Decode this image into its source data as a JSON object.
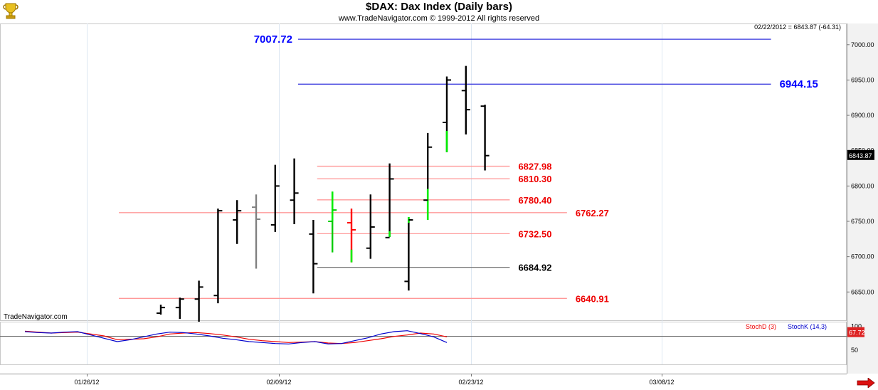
{
  "header": {
    "title": "$DAX:  Dax Index  (Daily bars)",
    "subtitle": "www.TradeNavigator.com © 1999-2012 All rights reserved",
    "readout": "02/22/2012 = 6843.87 (-64.31)",
    "watermark": "TradeNavigator.com",
    "logo_icon": "trophy-icon",
    "scroll_icon": "red-arrow-right-icon"
  },
  "chart_data": {
    "type": "ohlc",
    "title": "$DAX:  Dax Index  (Daily bars)",
    "ylim": [
      6610,
      7030
    ],
    "yticks": [
      6650,
      6700,
      6750,
      6800,
      6850,
      6900,
      6950,
      7000
    ],
    "ytick_labels": [
      "6650.00",
      "6700.00",
      "6750.00",
      "6800.00",
      "6850.00",
      "6900.00",
      "6950.00",
      "7000.00"
    ],
    "last_price_label": "6843.87",
    "xtick_labels": [
      "01/26/12",
      "02/09/12",
      "02/23/12",
      "03/08/12"
    ],
    "bars": [
      {
        "o": 6620,
        "h": 6632,
        "l": 6618,
        "c": 6628,
        "color": "#000000"
      },
      {
        "o": 6628,
        "h": 6642,
        "l": 6612,
        "c": 6640,
        "color": "#000000"
      },
      {
        "o": 6640,
        "h": 6666,
        "l": 6608,
        "c": 6657,
        "color": "#000000"
      },
      {
        "o": 6645,
        "h": 6768,
        "l": 6634,
        "c": 6765,
        "color": "#000000"
      },
      {
        "o": 6752,
        "h": 6780,
        "l": 6718,
        "c": 6765,
        "color": "#000000"
      },
      {
        "o": 6770,
        "h": 6788,
        "l": 6683,
        "c": 6753,
        "color": "#808080"
      },
      {
        "o": 6745,
        "h": 6830,
        "l": 6735,
        "c": 6800,
        "color": "#000000"
      },
      {
        "o": 6780,
        "h": 6839,
        "l": 6746,
        "c": 6790,
        "color": "#000000"
      },
      {
        "o": 6732,
        "h": 6752,
        "l": 6648,
        "c": 6690,
        "color": "#000000"
      },
      {
        "o": 6750,
        "h": 6792,
        "l": 6706,
        "c": 6766,
        "color": "#00cc00",
        "mixed": [
          {
            "from": 6750,
            "to": 6792,
            "color": "#00ee00"
          }
        ]
      },
      {
        "o": 6748,
        "h": 6768,
        "l": 6692,
        "c": 6738,
        "color": "#ff0000",
        "mixed": [
          {
            "from": 6692,
            "to": 6710,
            "color": "#00ee00"
          }
        ]
      },
      {
        "o": 6712,
        "h": 6788,
        "l": 6697,
        "c": 6742,
        "color": "#000000"
      },
      {
        "o": 6727,
        "h": 6832,
        "l": 6728,
        "c": 6810,
        "color": "#000000",
        "mixed": [
          {
            "from": 6728,
            "to": 6736,
            "color": "#00ee00"
          }
        ]
      },
      {
        "o": 6665,
        "h": 6756,
        "l": 6652,
        "c": 6752,
        "color": "#000000",
        "mixed": [
          {
            "from": 6748,
            "to": 6756,
            "color": "#00ee00"
          }
        ]
      },
      {
        "o": 6780,
        "h": 6875,
        "l": 6752,
        "c": 6855,
        "color": "#000000",
        "mixed": [
          {
            "from": 6752,
            "to": 6796,
            "color": "#00ee00"
          }
        ]
      },
      {
        "o": 6890,
        "h": 6955,
        "l": 6848,
        "c": 6950,
        "color": "#000000",
        "mixed": [
          {
            "from": 6848,
            "to": 6878,
            "color": "#00ee00"
          }
        ]
      },
      {
        "o": 6935,
        "h": 6970,
        "l": 6873,
        "c": 6908,
        "color": "#000000"
      },
      {
        "o": 6913,
        "h": 6915,
        "l": 6822,
        "c": 6843,
        "color": "#000000"
      }
    ],
    "levels": [
      {
        "value": 7007.72,
        "label": "7007.72",
        "color": "#3333dd",
        "label_color": "#0000ff",
        "x_start_bar": 7.2,
        "x_end_bar": 32,
        "label_side": "left"
      },
      {
        "value": 6944.15,
        "label": "6944.15",
        "color": "#3333dd",
        "label_color": "#0000ff",
        "x_start_bar": 7.2,
        "x_end_bar": 32,
        "label_side": "right"
      },
      {
        "value": 6827.98,
        "label": "6827.98",
        "color": "#ff9999",
        "label_color": "#ee0000",
        "x_start_bar": 8.2,
        "x_end_bar": 18.3,
        "label_side": "right"
      },
      {
        "value": 6810.3,
        "label": "6810.30",
        "color": "#ff9999",
        "label_color": "#ee0000",
        "x_start_bar": 8.2,
        "x_end_bar": 18.3,
        "label_side": "right"
      },
      {
        "value": 6780.4,
        "label": "6780.40",
        "color": "#ff9999",
        "label_color": "#ee0000",
        "x_start_bar": 8.2,
        "x_end_bar": 18.3,
        "label_side": "right"
      },
      {
        "value": 6762.27,
        "label": "6762.27",
        "color": "#ff9999",
        "label_color": "#ee0000",
        "x_start_bar": -2.2,
        "x_end_bar": 21.3,
        "label_side": "right"
      },
      {
        "value": 6732.5,
        "label": "6732.50",
        "color": "#ff9999",
        "label_color": "#ee0000",
        "x_start_bar": 8.2,
        "x_end_bar": 18.3,
        "label_side": "right"
      },
      {
        "value": 6684.92,
        "label": "6684.92",
        "color": "#777777",
        "label_color": "#000000",
        "x_start_bar": 8.2,
        "x_end_bar": 18.3,
        "label_side": "right"
      },
      {
        "value": 6640.91,
        "label": "6640.91",
        "color": "#ff9999",
        "label_color": "#ee0000",
        "x_start_bar": -2.2,
        "x_end_bar": 21.3,
        "label_side": "right"
      }
    ],
    "indicator": {
      "legend": [
        {
          "name": "StochD (3)",
          "color": "#ee0000"
        },
        {
          "name": "StochK (14,3)",
          "color": "#0000cc"
        }
      ],
      "yticks": [
        50,
        100
      ],
      "ytick_labels": [
        "50",
        "100"
      ],
      "last_label": "67.72",
      "stochD": [
        90,
        88,
        86,
        87,
        88,
        84,
        80,
        72,
        73,
        74,
        78,
        84,
        86,
        87,
        85,
        82,
        78,
        73,
        70,
        68,
        66,
        67,
        68,
        65,
        64,
        66,
        70,
        74,
        79,
        82,
        86,
        84,
        78
      ],
      "stochK": [
        89,
        87,
        86,
        88,
        89,
        82,
        75,
        68,
        72,
        78,
        84,
        88,
        87,
        84,
        80,
        75,
        72,
        68,
        66,
        64,
        63,
        66,
        68,
        63,
        64,
        70,
        76,
        84,
        89,
        91,
        85,
        78,
        66
      ]
    }
  }
}
